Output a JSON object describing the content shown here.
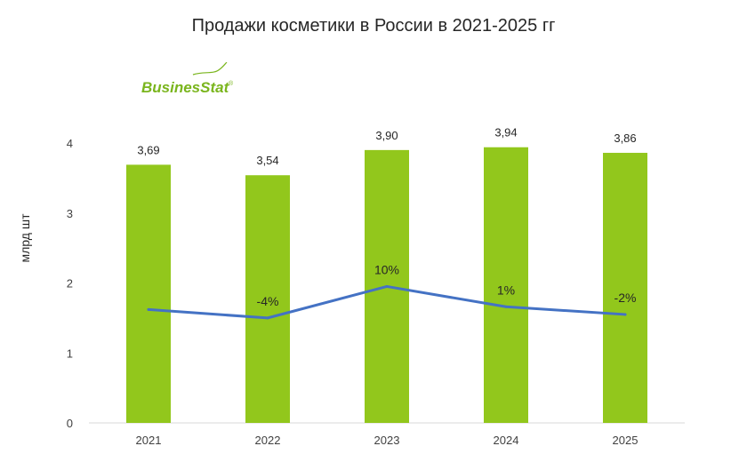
{
  "title": "Продажи косметики в России в 2021-2025 гг",
  "logo_text": "BusinesStat",
  "colors": {
    "bar": "#92c71c",
    "line": "#4472c4",
    "logo": "#7ab51d",
    "text": "#262626"
  },
  "chart_data": {
    "type": "bar",
    "title": "Продажи косметики в России в 2021-2025 гг",
    "ylabel": "млрд шт",
    "xlabel": "",
    "categories": [
      "2021",
      "2022",
      "2023",
      "2024",
      "2025"
    ],
    "values": [
      3.69,
      3.54,
      3.9,
      3.94,
      3.86
    ],
    "value_labels": [
      "3,69",
      "3,54",
      "3,90",
      "3,94",
      "3,86"
    ],
    "ylim": [
      0,
      4
    ],
    "yticks": [
      0,
      1,
      2,
      3,
      4
    ],
    "grid": false,
    "growth_line": {
      "type": "line",
      "values": [
        1.62,
        1.5,
        1.95,
        1.66,
        1.55
      ],
      "labels": [
        "",
        "-4%",
        "10%",
        "1%",
        "-2%"
      ]
    }
  }
}
